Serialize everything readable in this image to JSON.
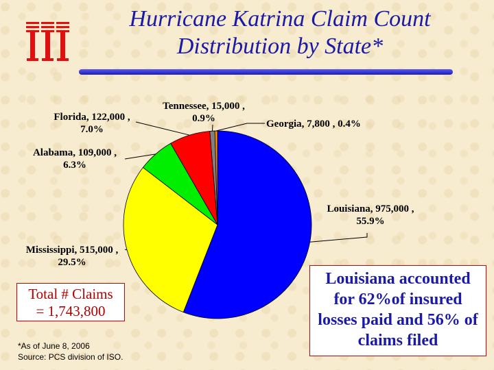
{
  "header": {
    "title_line1": "Hurricane Katrina  Claim Count",
    "title_line2": "Distribution by State*"
  },
  "colors": {
    "title": "#1a1aa6",
    "accent_red": "#cc0000",
    "background": "#f7ecd0"
  },
  "chart_data": {
    "type": "pie",
    "title": "",
    "series": [
      {
        "name": "Louisiana",
        "value": 975000,
        "percent": 55.9,
        "color": "#0000ff",
        "label_value": "Louisiana, 975,000 ,",
        "label_pct": "55.9%"
      },
      {
        "name": "Mississippi",
        "value": 515000,
        "percent": 29.5,
        "color": "#ffff00",
        "label_value": "Mississippi, 515,000 ,",
        "label_pct": "29.5%"
      },
      {
        "name": "Alabama",
        "value": 109000,
        "percent": 6.3,
        "color": "#00ee00",
        "label_value": "Alabama, 109,000 ,",
        "label_pct": "6.3%"
      },
      {
        "name": "Florida",
        "value": 122000,
        "percent": 7.0,
        "color": "#ff0000",
        "label_value": "Florida, 122,000 ,",
        "label_pct": "7.0%"
      },
      {
        "name": "Tennessee",
        "value": 15000,
        "percent": 0.9,
        "color": "#808080",
        "label_value": "Tennessee, 15,000 ,",
        "label_pct": "0.9%"
      },
      {
        "name": "Georgia",
        "value": 7800,
        "percent": 0.4,
        "color": "#ff8c00",
        "label_value": "Georgia, 7,800 , 0.4%",
        "label_pct": ""
      }
    ]
  },
  "total_box": {
    "line1": "Total # Claims",
    "line2": "= 1,743,800"
  },
  "footnote": {
    "line1": "*As of June 8, 2006",
    "line2": "Source:  PCS division of ISO."
  },
  "note_box": {
    "text": "Louisiana accounted for 62%of insured losses paid and 56% of  claims filed"
  }
}
